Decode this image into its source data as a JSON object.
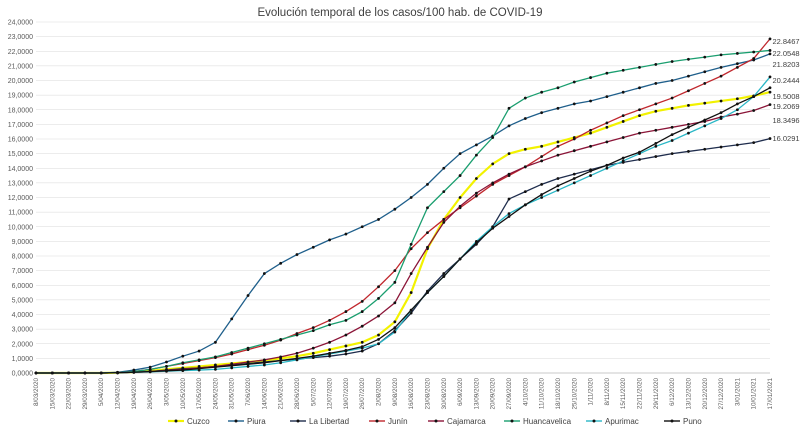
{
  "chart_data": {
    "type": "line",
    "title": "Evolución temporal de los casos/100 hab. de COVID-19",
    "xlabel": "",
    "ylabel": "",
    "ylim": [
      0,
      24
    ],
    "yticks": [
      "0,0000",
      "1,0000",
      "2,0000",
      "3,0000",
      "4,0000",
      "5,0000",
      "6,0000",
      "7,0000",
      "8,0000",
      "9,0000",
      "10,0000",
      "11,0000",
      "12,0000",
      "13,0000",
      "14,0000",
      "15,0000",
      "16,0000",
      "17,0000",
      "18,0000",
      "19,0000",
      "20,0000",
      "21,0000",
      "22,0000",
      "23,0000",
      "24,0000"
    ],
    "x": [
      "8/03/2020",
      "15/03/2020",
      "22/03/2020",
      "29/03/2020",
      "5/04/2020",
      "12/04/2020",
      "19/04/2020",
      "26/04/2020",
      "3/05/2020",
      "10/05/2020",
      "17/05/2020",
      "24/05/2020",
      "31/05/2020",
      "7/06/2020",
      "14/06/2020",
      "21/06/2020",
      "28/06/2020",
      "5/07/2020",
      "12/07/2020",
      "19/07/2020",
      "26/07/2020",
      "2/08/2020",
      "9/08/2020",
      "16/08/2020",
      "23/08/2020",
      "30/08/2020",
      "6/09/2020",
      "13/09/2020",
      "20/09/2020",
      "27/09/2020",
      "4/10/2020",
      "11/10/2020",
      "18/10/2020",
      "25/10/2020",
      "1/11/2020",
      "8/11/2020",
      "15/11/2020",
      "22/11/2020",
      "29/11/2020",
      "6/12/2020",
      "13/12/2020",
      "20/12/2020",
      "27/12/2020",
      "3/01/2021",
      "10/01/2021",
      "17/01/2021"
    ],
    "grid": true,
    "legend": "bottom",
    "end_labels": [
      "22.8467",
      "22.0548",
      "21.8203",
      "20.2444",
      "19.5008",
      "19.2069",
      "18.3496",
      "16.0291"
    ],
    "series": [
      {
        "name": "Cuzco",
        "color": "#f2f200",
        "values": [
          0,
          0,
          0,
          0,
          0,
          0.02,
          0.07,
          0.15,
          0.25,
          0.35,
          0.45,
          0.55,
          0.65,
          0.75,
          0.85,
          1.0,
          1.15,
          1.35,
          1.6,
          1.85,
          2.1,
          2.6,
          3.5,
          5.5,
          8.5,
          10.5,
          12.0,
          13.3,
          14.3,
          15.0,
          15.3,
          15.5,
          15.8,
          16.1,
          16.4,
          16.8,
          17.2,
          17.6,
          17.9,
          18.1,
          18.3,
          18.45,
          18.6,
          18.75,
          18.95,
          19.2069
        ]
      },
      {
        "name": "Piura",
        "color": "#1f5f8b",
        "values": [
          0,
          0,
          0,
          0,
          0,
          0.05,
          0.2,
          0.4,
          0.75,
          1.15,
          1.5,
          2.1,
          3.7,
          5.3,
          6.8,
          7.5,
          8.1,
          8.6,
          9.1,
          9.5,
          10.0,
          10.5,
          11.2,
          12.0,
          12.9,
          14.0,
          15.0,
          15.6,
          16.2,
          16.9,
          17.4,
          17.8,
          18.1,
          18.4,
          18.6,
          18.9,
          19.2,
          19.5,
          19.8,
          20.0,
          20.3,
          20.6,
          20.9,
          21.15,
          21.4,
          21.8203
        ]
      },
      {
        "name": "La Libertad",
        "color": "#1f2d4d",
        "values": [
          0,
          0,
          0,
          0,
          0,
          0.02,
          0.05,
          0.1,
          0.2,
          0.3,
          0.35,
          0.45,
          0.55,
          0.65,
          0.75,
          0.85,
          0.95,
          1.05,
          1.15,
          1.3,
          1.5,
          2.0,
          2.9,
          4.1,
          5.6,
          6.8,
          7.8,
          8.8,
          10.0,
          11.9,
          12.4,
          12.9,
          13.3,
          13.6,
          13.9,
          14.2,
          14.4,
          14.6,
          14.8,
          15.0,
          15.15,
          15.3,
          15.45,
          15.6,
          15.75,
          16.0291
        ]
      },
      {
        "name": "Junín",
        "color": "#c0272d",
        "values": [
          0,
          0,
          0,
          0,
          0,
          0.02,
          0.1,
          0.25,
          0.45,
          0.65,
          0.85,
          1.05,
          1.3,
          1.6,
          1.9,
          2.25,
          2.7,
          3.1,
          3.6,
          4.2,
          4.9,
          5.9,
          7.0,
          8.5,
          9.6,
          10.5,
          11.3,
          12.1,
          12.9,
          13.5,
          14.1,
          14.8,
          15.5,
          16.0,
          16.6,
          17.1,
          17.6,
          18.0,
          18.4,
          18.8,
          19.3,
          19.8,
          20.3,
          20.9,
          21.5,
          22.8467
        ]
      },
      {
        "name": "Cajamarca",
        "color": "#8b1538",
        "values": [
          0,
          0,
          0,
          0,
          0,
          0.02,
          0.05,
          0.1,
          0.18,
          0.25,
          0.35,
          0.45,
          0.6,
          0.75,
          0.9,
          1.1,
          1.35,
          1.7,
          2.1,
          2.6,
          3.2,
          3.9,
          4.8,
          6.8,
          8.6,
          10.3,
          11.4,
          12.3,
          13.0,
          13.6,
          14.1,
          14.5,
          14.9,
          15.2,
          15.5,
          15.8,
          16.1,
          16.4,
          16.6,
          16.8,
          17.0,
          17.2,
          17.5,
          17.7,
          17.95,
          18.3496
        ]
      },
      {
        "name": "Huancavelica",
        "color": "#1a9e6f",
        "values": [
          0,
          0,
          0,
          0,
          0,
          0.02,
          0.1,
          0.25,
          0.45,
          0.7,
          0.9,
          1.1,
          1.4,
          1.7,
          2.0,
          2.3,
          2.6,
          2.9,
          3.3,
          3.6,
          4.2,
          5.1,
          6.2,
          8.8,
          11.3,
          12.4,
          13.5,
          14.9,
          16.1,
          18.1,
          18.8,
          19.2,
          19.5,
          19.9,
          20.2,
          20.5,
          20.7,
          20.9,
          21.1,
          21.3,
          21.45,
          21.6,
          21.75,
          21.85,
          21.95,
          22.0548
        ]
      },
      {
        "name": "Apurimac",
        "color": "#2ab7c6",
        "values": [
          0,
          0,
          0,
          0,
          0,
          0.02,
          0.05,
          0.08,
          0.12,
          0.16,
          0.2,
          0.25,
          0.35,
          0.45,
          0.55,
          0.7,
          0.9,
          1.1,
          1.3,
          1.5,
          1.7,
          2.0,
          2.8,
          4.3,
          5.5,
          6.6,
          7.8,
          9.0,
          10.0,
          10.9,
          11.5,
          12.0,
          12.5,
          13.0,
          13.5,
          14.0,
          14.5,
          15.0,
          15.5,
          15.9,
          16.4,
          16.9,
          17.4,
          18.0,
          18.9,
          20.2444
        ]
      },
      {
        "name": "Puno",
        "color": "#111111",
        "values": [
          0,
          0,
          0,
          0,
          0,
          0.02,
          0.05,
          0.1,
          0.15,
          0.2,
          0.3,
          0.4,
          0.5,
          0.6,
          0.7,
          0.85,
          1.0,
          1.15,
          1.35,
          1.55,
          1.8,
          2.3,
          3.1,
          4.3,
          5.5,
          6.6,
          7.8,
          8.9,
          9.9,
          10.7,
          11.5,
          12.2,
          12.8,
          13.3,
          13.8,
          14.2,
          14.7,
          15.1,
          15.7,
          16.3,
          16.8,
          17.3,
          17.8,
          18.4,
          18.9,
          19.5008
        ]
      }
    ]
  }
}
